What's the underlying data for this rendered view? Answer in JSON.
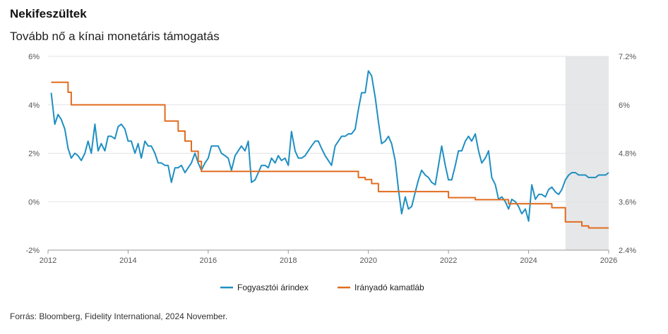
{
  "header": {
    "title": "Nekifeszültek",
    "subtitle": "Tovább nő a kínai monetáris támogatás"
  },
  "footer": {
    "source": "Forrás: Bloomberg, Fidelity International, 2024 November."
  },
  "colors": {
    "cpi": "#1f8fc2",
    "rate": "#e06c1f",
    "forecast_band": "#e6e7e9",
    "grid": "#e3e3e3"
  },
  "chart_data": {
    "type": "line",
    "title": "Nekifeszültek",
    "subtitle": "Tovább nő a kínai monetáris támogatás",
    "x_ticks": [
      "2012",
      "2014",
      "2016",
      "2018",
      "2020",
      "2022",
      "2024",
      "2026"
    ],
    "x_range": [
      2012,
      2026
    ],
    "y_left": {
      "range": [
        -2,
        6
      ],
      "ticks": [
        "-2%",
        "0%",
        "2%",
        "4%",
        "6%"
      ],
      "tick_values": [
        -2,
        0,
        2,
        4,
        6
      ]
    },
    "y_right": {
      "range": [
        2.4,
        7.2
      ],
      "ticks": [
        "2.4%",
        "3.6%",
        "4.8%",
        "6%",
        "7.2%"
      ],
      "tick_values": [
        2.4,
        3.6,
        4.8,
        6.0,
        7.2
      ]
    },
    "grid": true,
    "legend_position": "bottom",
    "shaded_region": {
      "x_start": 2024.92,
      "x_end": 2026
    },
    "series": [
      {
        "name": "Fogyasztói árindex",
        "axis": "left",
        "points": [
          [
            2012.08,
            4.5
          ],
          [
            2012.17,
            3.2
          ],
          [
            2012.25,
            3.6
          ],
          [
            2012.33,
            3.4
          ],
          [
            2012.42,
            3.0
          ],
          [
            2012.5,
            2.2
          ],
          [
            2012.58,
            1.8
          ],
          [
            2012.67,
            2.0
          ],
          [
            2012.75,
            1.9
          ],
          [
            2012.83,
            1.7
          ],
          [
            2012.92,
            2.0
          ],
          [
            2013.0,
            2.5
          ],
          [
            2013.08,
            2.0
          ],
          [
            2013.17,
            3.2
          ],
          [
            2013.25,
            2.1
          ],
          [
            2013.33,
            2.4
          ],
          [
            2013.42,
            2.1
          ],
          [
            2013.5,
            2.7
          ],
          [
            2013.58,
            2.7
          ],
          [
            2013.67,
            2.6
          ],
          [
            2013.75,
            3.1
          ],
          [
            2013.83,
            3.2
          ],
          [
            2013.92,
            3.0
          ],
          [
            2014.0,
            2.5
          ],
          [
            2014.08,
            2.5
          ],
          [
            2014.17,
            2.0
          ],
          [
            2014.25,
            2.4
          ],
          [
            2014.33,
            1.8
          ],
          [
            2014.42,
            2.5
          ],
          [
            2014.5,
            2.3
          ],
          [
            2014.58,
            2.3
          ],
          [
            2014.67,
            2.0
          ],
          [
            2014.75,
            1.6
          ],
          [
            2014.83,
            1.6
          ],
          [
            2014.92,
            1.5
          ],
          [
            2015.0,
            1.5
          ],
          [
            2015.08,
            0.8
          ],
          [
            2015.17,
            1.4
          ],
          [
            2015.25,
            1.4
          ],
          [
            2015.33,
            1.5
          ],
          [
            2015.42,
            1.2
          ],
          [
            2015.5,
            1.4
          ],
          [
            2015.58,
            1.6
          ],
          [
            2015.67,
            2.0
          ],
          [
            2015.75,
            1.6
          ],
          [
            2015.83,
            1.3
          ],
          [
            2015.92,
            1.6
          ],
          [
            2016.0,
            1.8
          ],
          [
            2016.08,
            2.3
          ],
          [
            2016.17,
            2.3
          ],
          [
            2016.25,
            2.3
          ],
          [
            2016.33,
            2.0
          ],
          [
            2016.42,
            1.9
          ],
          [
            2016.5,
            1.8
          ],
          [
            2016.58,
            1.3
          ],
          [
            2016.67,
            1.9
          ],
          [
            2016.75,
            2.1
          ],
          [
            2016.83,
            2.3
          ],
          [
            2016.92,
            2.1
          ],
          [
            2017.0,
            2.5
          ],
          [
            2017.08,
            0.8
          ],
          [
            2017.17,
            0.9
          ],
          [
            2017.25,
            1.2
          ],
          [
            2017.33,
            1.5
          ],
          [
            2017.42,
            1.5
          ],
          [
            2017.5,
            1.4
          ],
          [
            2017.58,
            1.8
          ],
          [
            2017.67,
            1.6
          ],
          [
            2017.75,
            1.9
          ],
          [
            2017.83,
            1.7
          ],
          [
            2017.92,
            1.8
          ],
          [
            2018.0,
            1.5
          ],
          [
            2018.08,
            2.9
          ],
          [
            2018.17,
            2.1
          ],
          [
            2018.25,
            1.8
          ],
          [
            2018.33,
            1.8
          ],
          [
            2018.42,
            1.9
          ],
          [
            2018.5,
            2.1
          ],
          [
            2018.58,
            2.3
          ],
          [
            2018.67,
            2.5
          ],
          [
            2018.75,
            2.5
          ],
          [
            2018.83,
            2.2
          ],
          [
            2018.92,
            1.9
          ],
          [
            2019.0,
            1.7
          ],
          [
            2019.08,
            1.5
          ],
          [
            2019.17,
            2.3
          ],
          [
            2019.25,
            2.5
          ],
          [
            2019.33,
            2.7
          ],
          [
            2019.42,
            2.7
          ],
          [
            2019.5,
            2.8
          ],
          [
            2019.58,
            2.8
          ],
          [
            2019.67,
            3.0
          ],
          [
            2019.75,
            3.8
          ],
          [
            2019.83,
            4.5
          ],
          [
            2019.92,
            4.5
          ],
          [
            2020.0,
            5.4
          ],
          [
            2020.08,
            5.2
          ],
          [
            2020.17,
            4.3
          ],
          [
            2020.25,
            3.3
          ],
          [
            2020.33,
            2.4
          ],
          [
            2020.42,
            2.5
          ],
          [
            2020.5,
            2.7
          ],
          [
            2020.58,
            2.4
          ],
          [
            2020.67,
            1.7
          ],
          [
            2020.75,
            0.5
          ],
          [
            2020.83,
            -0.5
          ],
          [
            2020.92,
            0.2
          ],
          [
            2021.0,
            -0.3
          ],
          [
            2021.08,
            -0.2
          ],
          [
            2021.17,
            0.4
          ],
          [
            2021.25,
            0.9
          ],
          [
            2021.33,
            1.3
          ],
          [
            2021.42,
            1.1
          ],
          [
            2021.5,
            1.0
          ],
          [
            2021.58,
            0.8
          ],
          [
            2021.67,
            0.7
          ],
          [
            2021.75,
            1.5
          ],
          [
            2021.83,
            2.3
          ],
          [
            2021.92,
            1.5
          ],
          [
            2022.0,
            0.9
          ],
          [
            2022.08,
            0.9
          ],
          [
            2022.17,
            1.5
          ],
          [
            2022.25,
            2.1
          ],
          [
            2022.33,
            2.1
          ],
          [
            2022.42,
            2.5
          ],
          [
            2022.5,
            2.7
          ],
          [
            2022.58,
            2.5
          ],
          [
            2022.67,
            2.8
          ],
          [
            2022.75,
            2.1
          ],
          [
            2022.83,
            1.6
          ],
          [
            2022.92,
            1.8
          ],
          [
            2023.0,
            2.1
          ],
          [
            2023.08,
            1.0
          ],
          [
            2023.17,
            0.7
          ],
          [
            2023.25,
            0.1
          ],
          [
            2023.33,
            0.2
          ],
          [
            2023.42,
            0.0
          ],
          [
            2023.5,
            -0.3
          ],
          [
            2023.58,
            0.1
          ],
          [
            2023.67,
            0.0
          ],
          [
            2023.75,
            -0.2
          ],
          [
            2023.83,
            -0.5
          ],
          [
            2023.92,
            -0.3
          ],
          [
            2024.0,
            -0.8
          ],
          [
            2024.08,
            0.7
          ],
          [
            2024.17,
            0.1
          ],
          [
            2024.25,
            0.3
          ],
          [
            2024.33,
            0.3
          ],
          [
            2024.42,
            0.2
          ],
          [
            2024.5,
            0.5
          ],
          [
            2024.58,
            0.6
          ],
          [
            2024.67,
            0.4
          ],
          [
            2024.75,
            0.3
          ],
          [
            2024.83,
            0.5
          ],
          [
            2024.92,
            0.9
          ],
          [
            2025.0,
            1.1
          ],
          [
            2025.08,
            1.2
          ],
          [
            2025.17,
            1.2
          ],
          [
            2025.25,
            1.1
          ],
          [
            2025.42,
            1.1
          ],
          [
            2025.5,
            1.0
          ],
          [
            2025.67,
            1.0
          ],
          [
            2025.75,
            1.1
          ],
          [
            2025.92,
            1.1
          ],
          [
            2026.0,
            1.2
          ]
        ]
      },
      {
        "name": "Irányadó kamatláb",
        "axis": "right",
        "points": [
          [
            2012.08,
            6.56
          ],
          [
            2012.42,
            6.56
          ],
          [
            2012.5,
            6.31
          ],
          [
            2012.58,
            6.0
          ],
          [
            2014.83,
            6.0
          ],
          [
            2014.92,
            5.6
          ],
          [
            2015.17,
            5.6
          ],
          [
            2015.25,
            5.35
          ],
          [
            2015.42,
            5.1
          ],
          [
            2015.58,
            4.85
          ],
          [
            2015.75,
            4.6
          ],
          [
            2015.83,
            4.35
          ],
          [
            2019.67,
            4.35
          ],
          [
            2019.75,
            4.2
          ],
          [
            2019.92,
            4.15
          ],
          [
            2020.08,
            4.05
          ],
          [
            2020.25,
            3.85
          ],
          [
            2021.92,
            3.85
          ],
          [
            2022.0,
            3.7
          ],
          [
            2022.58,
            3.7
          ],
          [
            2022.67,
            3.65
          ],
          [
            2023.42,
            3.65
          ],
          [
            2023.5,
            3.55
          ],
          [
            2024.5,
            3.55
          ],
          [
            2024.58,
            3.45
          ],
          [
            2024.83,
            3.45
          ],
          [
            2024.92,
            3.1
          ],
          [
            2025.25,
            3.1
          ],
          [
            2025.33,
            3.0
          ],
          [
            2025.5,
            2.95
          ],
          [
            2026.0,
            2.95
          ]
        ]
      }
    ]
  }
}
